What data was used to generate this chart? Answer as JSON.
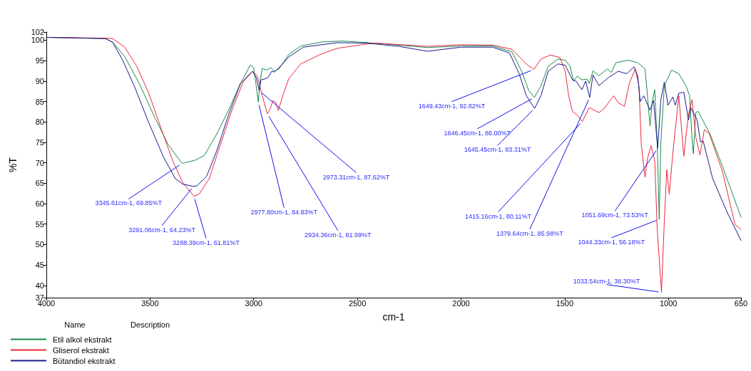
{
  "chart_data": {
    "type": "line",
    "xlabel": "cm-1",
    "ylabel": "%T",
    "legend_title": "Name",
    "xlim": [
      4000,
      650
    ],
    "xticks": [
      4000,
      3500,
      3000,
      2500,
      2000,
      1500,
      1000,
      650
    ],
    "ylim": [
      37,
      102
    ],
    "yticks": [
      37,
      40,
      45,
      50,
      55,
      60,
      65,
      70,
      75,
      80,
      85,
      90,
      95,
      100,
      102
    ],
    "grid": false,
    "legend": "bottom left",
    "marker": "none",
    "line_style": "solid",
    "series": [
      {
        "name": "Etil alkol ekstrakt",
        "color": "#1a8a4a",
        "x": [
          4000,
          3715,
          3680,
          3622,
          3552,
          3482,
          3413,
          3345.61,
          3285,
          3238,
          3180,
          3122,
          3064,
          3017,
          3000,
          2988,
          2977.8,
          2971,
          2959,
          2936,
          2918,
          2901,
          2878,
          2831,
          2773,
          2668,
          2575,
          2450,
          2300,
          2163,
          2000,
          1848,
          1755,
          1708,
          1673,
          1646.45,
          1615,
          1580,
          1533,
          1498,
          1475,
          1457,
          1440,
          1417,
          1393,
          1382,
          1364,
          1335,
          1294,
          1276,
          1253,
          1195,
          1148,
          1113,
          1101,
          1089,
          1077,
          1066,
          1054,
          1044.33,
          1037,
          1020,
          985,
          950,
          915,
          898,
          886,
          880,
          868,
          857,
          798,
          740,
          650
        ],
        "values": [
          100.7,
          100.4,
          99.5,
          96,
          89.4,
          81.6,
          74.5,
          69.85,
          70.6,
          71.8,
          76.9,
          82.8,
          89.4,
          93.9,
          93.3,
          88.8,
          84.83,
          89.4,
          93.1,
          92.7,
          93.3,
          92.4,
          93,
          96.5,
          98.6,
          99.6,
          99.8,
          99.4,
          98.8,
          98.2,
          98.6,
          98.6,
          97.2,
          92.4,
          87.6,
          86.0,
          88.8,
          93.6,
          95.4,
          95.1,
          93.7,
          90.0,
          91.2,
          90.3,
          90.5,
          89.4,
          92.5,
          91.3,
          93,
          92.1,
          94.5,
          95.1,
          94.5,
          93,
          86.4,
          79,
          85.3,
          87.9,
          74.5,
          56.18,
          74.5,
          88.8,
          92.7,
          91.8,
          88.8,
          86.4,
          75.7,
          72.2,
          82.3,
          82.6,
          76.9,
          69.2,
          56.7
        ]
      },
      {
        "name": "Gliserol ekstrakt",
        "color": "#e8283c",
        "x": [
          4000,
          3715,
          3680,
          3622,
          3564,
          3506,
          3448,
          3389,
          3343,
          3288.39,
          3262,
          3215,
          3168,
          3110,
          3052,
          3006,
          2982,
          2959,
          2934.36,
          2924,
          2907,
          2895,
          2881,
          2860,
          2831,
          2773,
          2680,
          2599,
          2482,
          2413,
          2163,
          2000,
          1848,
          1755,
          1685,
          1649.43,
          1615,
          1568,
          1522,
          1498,
          1481,
          1463,
          1440,
          1415.16,
          1382,
          1335,
          1311,
          1265,
          1242,
          1212,
          1189,
          1160,
          1142,
          1131,
          1113,
          1101,
          1084,
          1066,
          1054,
          1033.54,
          1020,
          1008,
          996,
          979,
          950,
          926,
          904,
          886,
          868,
          848,
          827,
          804,
          740,
          679,
          650
        ],
        "values": [
          100.7,
          100.5,
          100.4,
          98.3,
          93.6,
          87,
          78.6,
          70.3,
          65.2,
          61.81,
          62.4,
          66.1,
          73.3,
          82.2,
          89.7,
          92.4,
          91.2,
          86.4,
          81.99,
          82.8,
          85.2,
          84.9,
          82.8,
          86.4,
          90.6,
          94.2,
          96.5,
          98,
          98.9,
          99.3,
          98.5,
          98.9,
          98.8,
          97.8,
          94.2,
          92.82,
          95.4,
          96.4,
          95.7,
          92.4,
          86.4,
          82.6,
          81.7,
          80.11,
          83.5,
          82.3,
          83.2,
          86.4,
          84.7,
          83.8,
          89.4,
          93,
          88.8,
          74.5,
          66.5,
          71,
          74.2,
          70.4,
          53.7,
          38.3,
          55.5,
          68.3,
          62.3,
          72.2,
          86.4,
          71.6,
          81.7,
          85.5,
          76.3,
          71.9,
          78.1,
          77.2,
          68,
          54.9,
          53.7
        ]
      },
      {
        "name": "Bütandiol ekstrakt",
        "color": "#1a1a8c",
        "x": [
          4000,
          3715,
          3680,
          3634,
          3576,
          3506,
          3436,
          3378,
          3343,
          3291.06,
          3273,
          3227,
          3180,
          3122,
          3064,
          3006,
          2988,
          2973.31,
          2965,
          2948,
          2930,
          2913,
          2901,
          2878,
          2831,
          2761,
          2599,
          2459,
          2300,
          2163,
          2000,
          1848,
          1767,
          1720,
          1685,
          1645.45,
          1615,
          1580,
          1533,
          1498,
          1463,
          1446,
          1417,
          1399,
          1379.64,
          1364,
          1335,
          1288,
          1242,
          1201,
          1166,
          1148,
          1136,
          1119,
          1089,
          1072,
          1051.69,
          1037,
          1020,
          1002,
          979,
          967,
          950,
          926,
          903,
          892,
          862,
          845,
          833,
          787,
          717,
          650
        ],
        "values": [
          100.7,
          100.4,
          99.5,
          95.3,
          88.8,
          79.8,
          71.5,
          66.1,
          64.8,
          64.23,
          64.4,
          66.7,
          72.7,
          81.6,
          89.4,
          92.4,
          90.9,
          87.62,
          90.3,
          90.5,
          90.9,
          92.4,
          92.2,
          93.3,
          95.9,
          98.3,
          99.4,
          99.3,
          98.5,
          97.3,
          98.3,
          98.3,
          96.9,
          91.8,
          86.4,
          83.31,
          86.4,
          92.4,
          94.2,
          93.9,
          90.3,
          90,
          87.9,
          90,
          85.98,
          91.5,
          88.9,
          90.9,
          92.4,
          91.8,
          93.5,
          91.2,
          85,
          86.4,
          82.9,
          85.3,
          73.53,
          85.3,
          89.7,
          84.1,
          86.1,
          84.1,
          87,
          87.3,
          80.5,
          83.5,
          80.5,
          75.1,
          75.4,
          66.2,
          57.9,
          51.0
        ]
      }
    ],
    "annotations": [
      {
        "text": "3345.61cm-1, 69.85%T",
        "x": 3345.61,
        "y": 69.85
      },
      {
        "text": "3291.06cm-1, 64.23%T",
        "x": 3291.06,
        "y": 64.23
      },
      {
        "text": "3288.39cm-1, 61.81%T",
        "x": 3288.39,
        "y": 61.81
      },
      {
        "text": "2977.80cm-1, 84.83%T",
        "x": 2977.8,
        "y": 84.83
      },
      {
        "text": "2934.36cm-1, 81.99%T",
        "x": 2934.36,
        "y": 81.99
      },
      {
        "text": "2973.31cm-1, 87.62%T",
        "x": 2973.31,
        "y": 87.62
      },
      {
        "text": "1649.43cm-1, 92.82%T",
        "x": 1649.43,
        "y": 92.82
      },
      {
        "text": "1646.45cm-1, 86.00%T",
        "x": 1646.45,
        "y": 86.0
      },
      {
        "text": "1645.45cm-1, 83.31%T",
        "x": 1645.45,
        "y": 83.31
      },
      {
        "text": "1415.16cm-1, 80.11%T",
        "x": 1415.16,
        "y": 80.11
      },
      {
        "text": "1379.64cm-1, 85.98%T",
        "x": 1379.64,
        "y": 85.98
      },
      {
        "text": "1051.69cm-1, 73.53%T",
        "x": 1051.69,
        "y": 73.53
      },
      {
        "text": "1044.33cm-1, 56.18%T",
        "x": 1044.33,
        "y": 56.18
      },
      {
        "text": "1033.54cm-1, 38.30%T",
        "x": 1033.54,
        "y": 38.3
      },
      "Description"
    ]
  }
}
